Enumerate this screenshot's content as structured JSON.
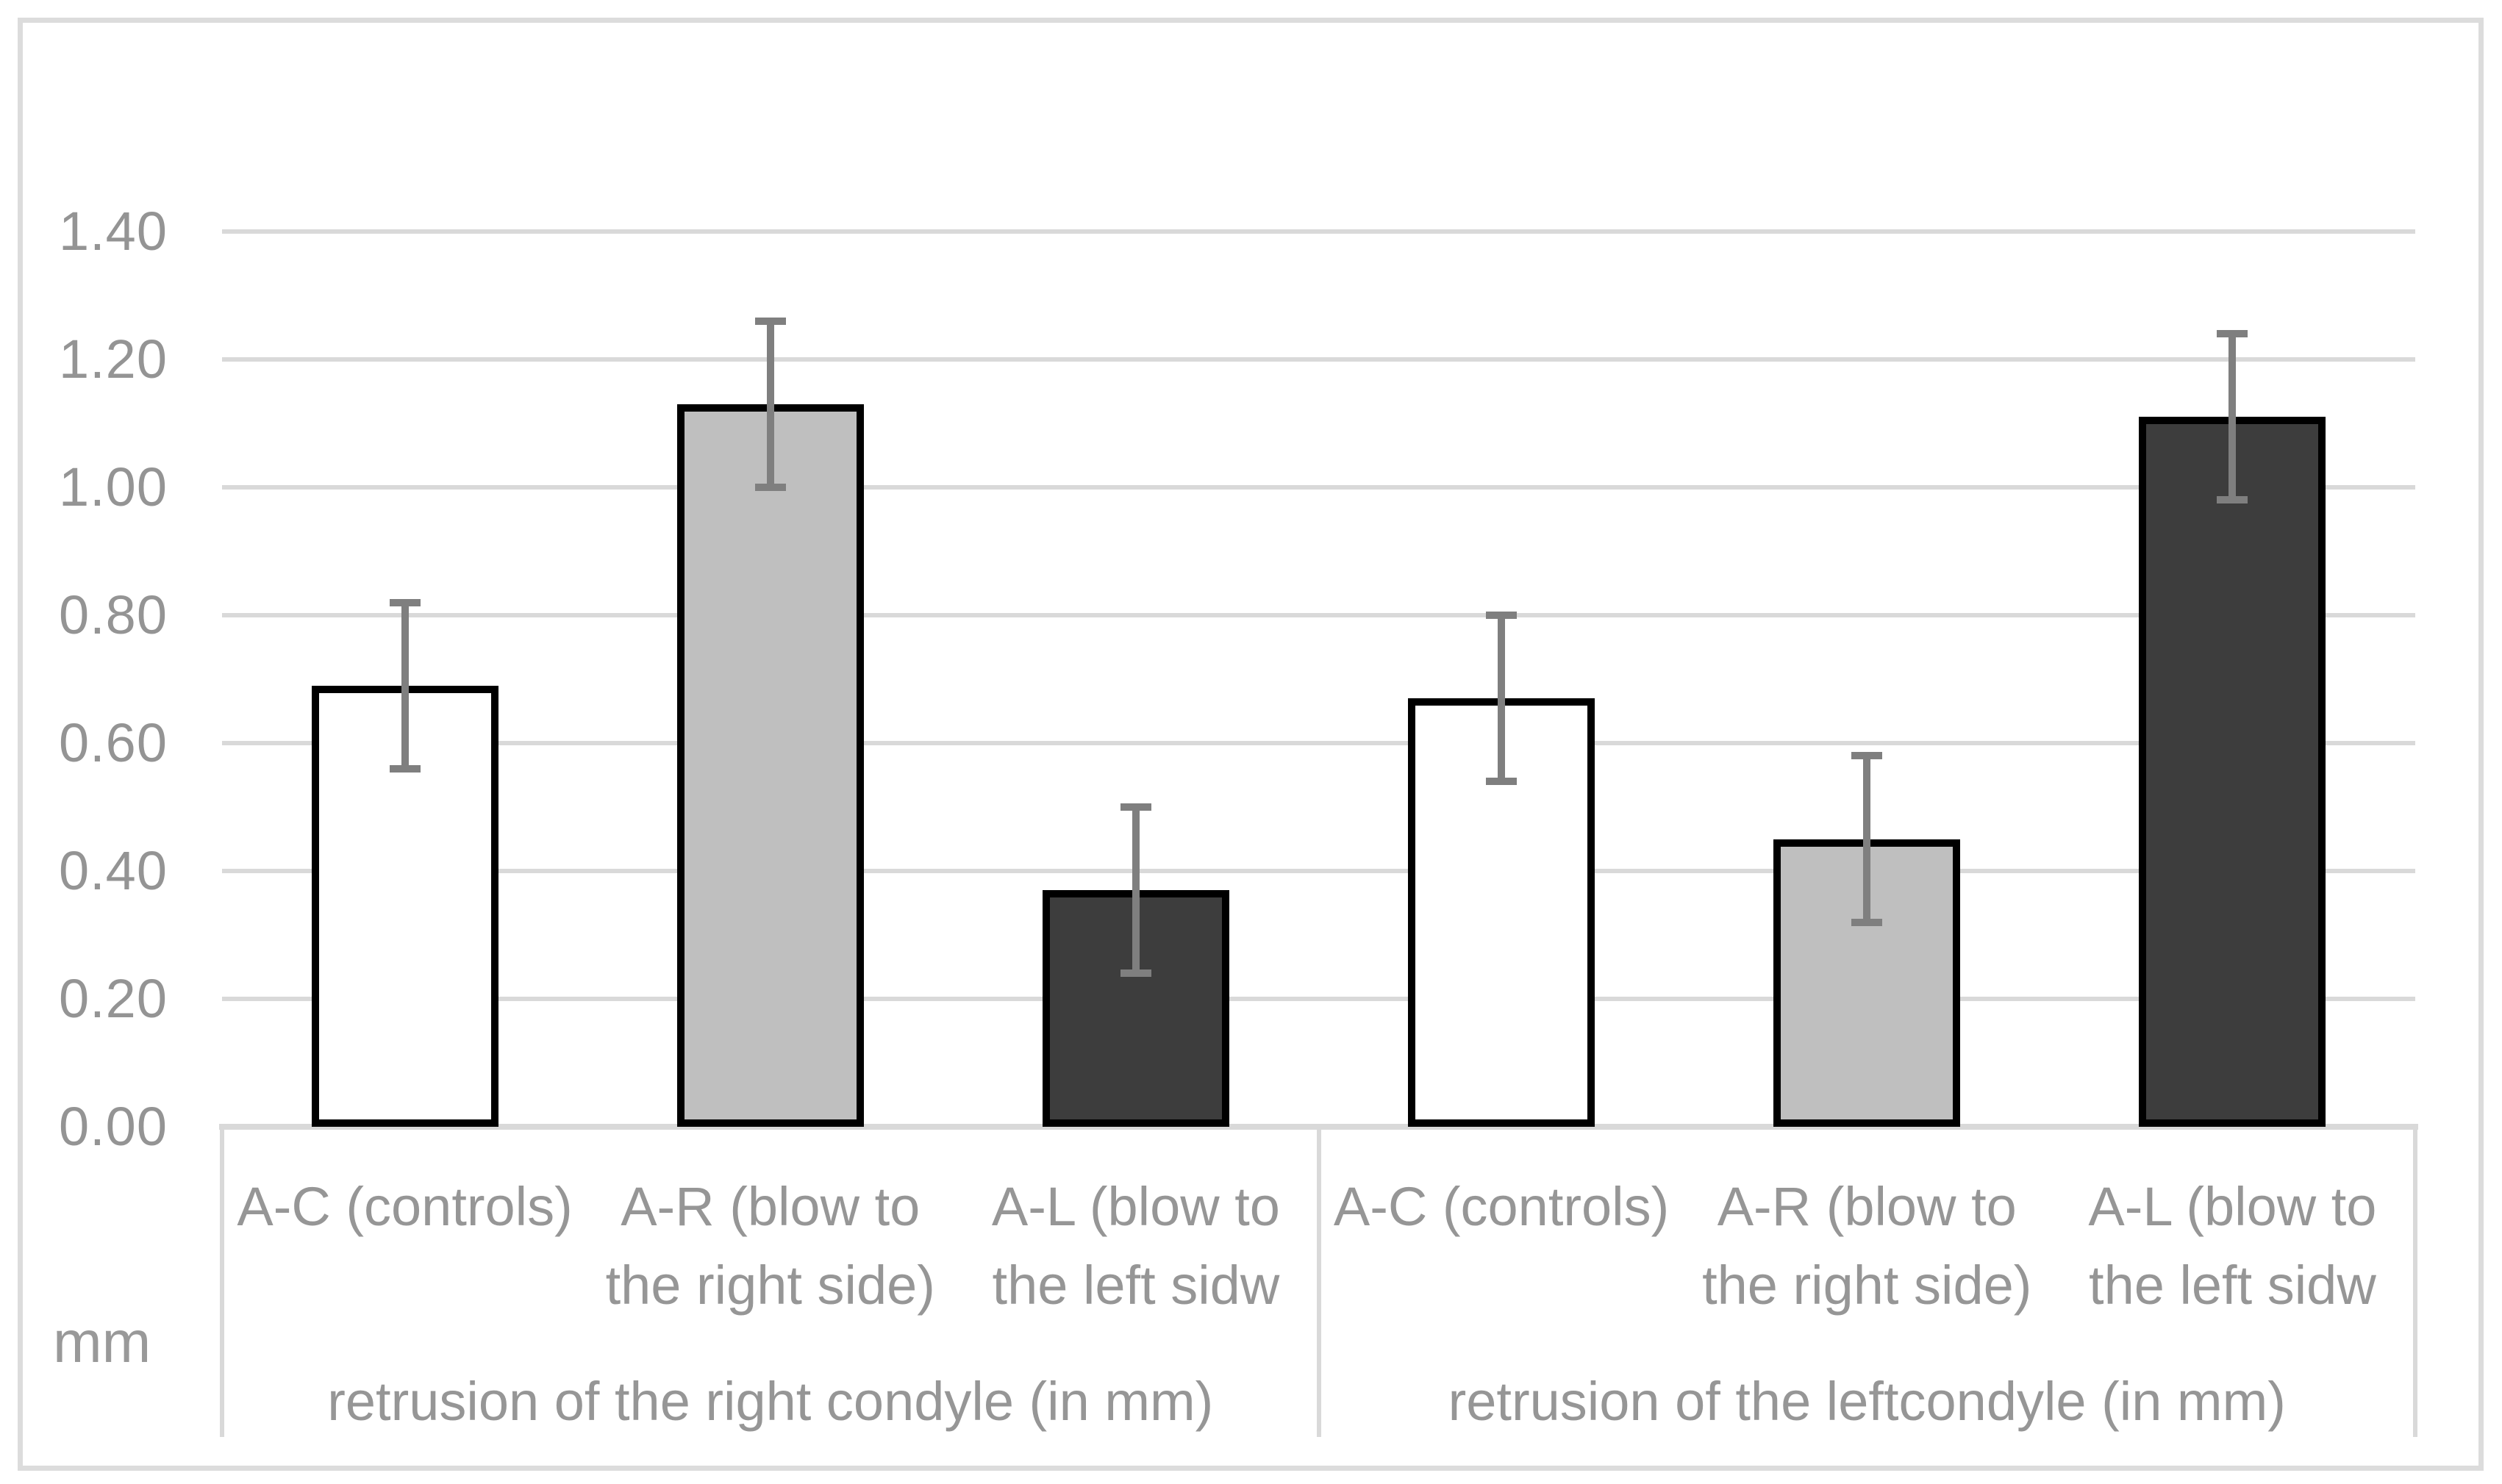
{
  "figure": {
    "unit_label": "mm",
    "colors": {
      "grid": "#d9d9d9",
      "outer_border": "#dcdcdc",
      "text": "#969696",
      "bar_border": "#000000",
      "error_bar": "#7f7f7f",
      "fill_controls": "#ffffff",
      "fill_blow_right": "#bfbfbf",
      "fill_blow_left": "#3d3d3d",
      "background": "#ffffff"
    }
  },
  "chart_data": {
    "type": "bar",
    "title": "",
    "xlabel": "",
    "ylabel": "mm",
    "ylim": [
      0,
      1.4
    ],
    "ytick_step": 0.2,
    "yticks": [
      {
        "label": "1.40",
        "value": 1.4
      },
      {
        "label": "1.20",
        "value": 1.2
      },
      {
        "label": "1.00",
        "value": 1.0
      },
      {
        "label": "0.80",
        "value": 0.8
      },
      {
        "label": "0.60",
        "value": 0.6
      },
      {
        "label": "0.40",
        "value": 0.4
      },
      {
        "label": "0.20",
        "value": 0.2
      },
      {
        "label": "0.00",
        "value": 0.0
      }
    ],
    "grid": true,
    "legend": false,
    "error_bars": true,
    "groups": [
      {
        "label": "retrusion of the right condyle (in mm)",
        "bars": [
          {
            "category": "A-C (controls)",
            "label_lines": [
              "A-C (controls)"
            ],
            "value": 0.69,
            "error_low": 0.56,
            "error_high": 0.82,
            "fill": "#ffffff"
          },
          {
            "category": "A-R (blow to the right side)",
            "label_lines": [
              "A-R (blow to",
              "the right side)"
            ],
            "value": 1.13,
            "error_low": 1.0,
            "error_high": 1.26,
            "fill": "#bfbfbf"
          },
          {
            "category": "A-L (blow to the left sidw",
            "label_lines": [
              "A-L (blow to",
              "the left sidw"
            ],
            "value": 0.37,
            "error_low": 0.24,
            "error_high": 0.5,
            "fill": "#3d3d3d"
          }
        ]
      },
      {
        "label": "retrusion of the leftcondyle (in mm)",
        "bars": [
          {
            "category": "A-C (controls)",
            "label_lines": [
              "A-C (controls)"
            ],
            "value": 0.67,
            "error_low": 0.54,
            "error_high": 0.8,
            "fill": "#ffffff"
          },
          {
            "category": "A-R (blow to the right side)",
            "label_lines": [
              "A-R (blow to",
              "the right side)"
            ],
            "value": 0.45,
            "error_low": 0.32,
            "error_high": 0.58,
            "fill": "#bfbfbf"
          },
          {
            "category": "A-L (blow to the left sidw",
            "label_lines": [
              "A-L (blow to",
              "the left sidw"
            ],
            "value": 1.11,
            "error_low": 0.98,
            "error_high": 1.24,
            "fill": "#3d3d3d"
          }
        ]
      }
    ]
  }
}
